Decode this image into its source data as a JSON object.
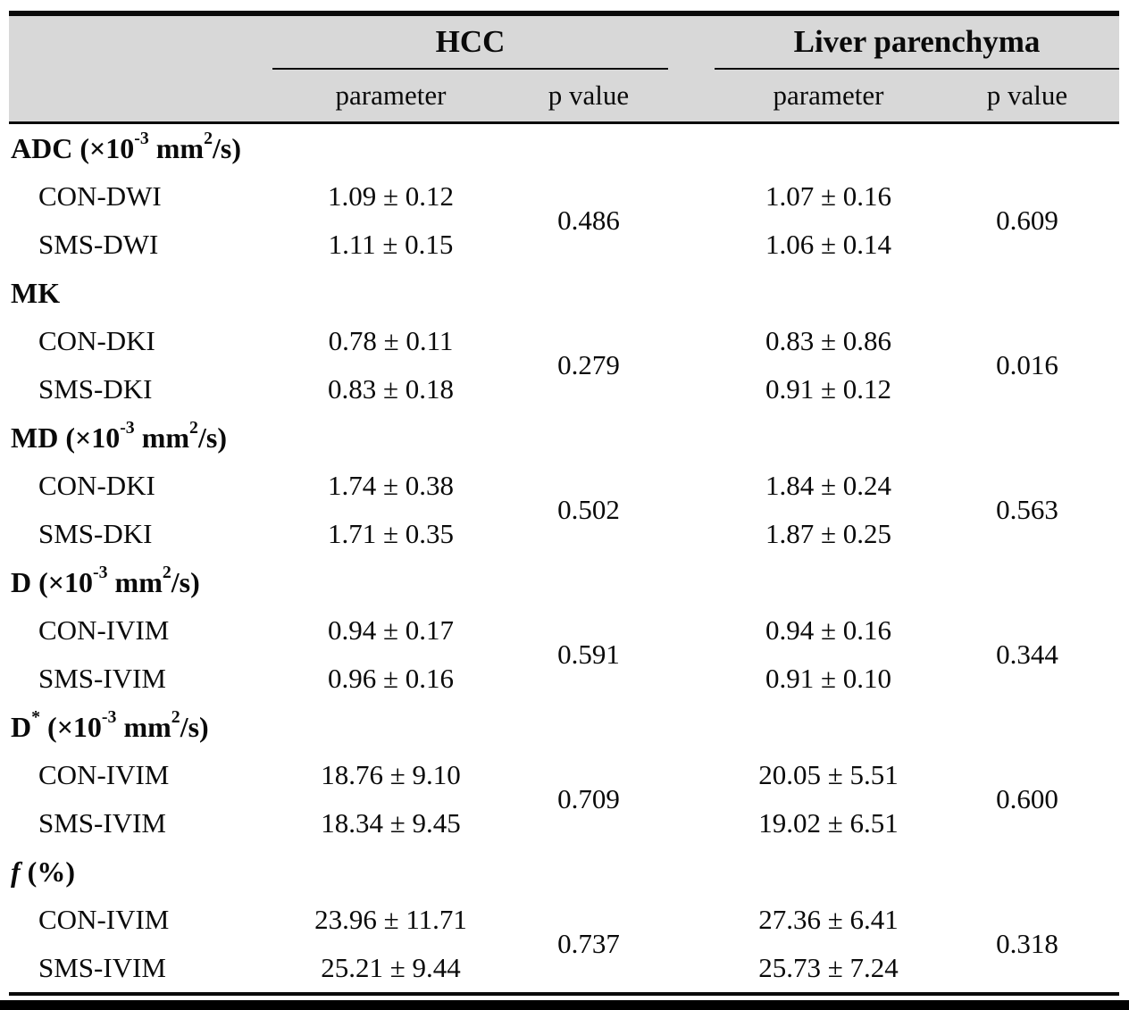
{
  "colors": {
    "header_bg": "#d8d8d8",
    "rule": "#0a0a0a",
    "text": "#0a0a0a"
  },
  "header": {
    "group1": "HCC",
    "group2": "Liver parenchyma",
    "sub_parameter": "parameter",
    "sub_pvalue": "p value"
  },
  "table": {
    "sections": [
      {
        "label_parts": [
          {
            "t": "ADC (×10"
          },
          {
            "t": "-3",
            "sup": true
          },
          {
            "t": " mm"
          },
          {
            "t": "2",
            "sup": true
          },
          {
            "t": "/s)"
          }
        ],
        "rows": [
          {
            "label": "CON-DWI",
            "hcc": "1.09 ± 0.12",
            "liver": "1.07 ± 0.16"
          },
          {
            "label": "SMS-DWI",
            "hcc": "1.11 ± 0.15",
            "liver": "1.06 ± 0.14"
          }
        ],
        "hcc_p": "0.486",
        "liver_p": "0.609"
      },
      {
        "label_parts": [
          {
            "t": "MK"
          }
        ],
        "rows": [
          {
            "label": "CON-DKI",
            "hcc": "0.78 ± 0.11",
            "liver": "0.83 ± 0.86"
          },
          {
            "label": "SMS-DKI",
            "hcc": "0.83 ± 0.18",
            "liver": "0.91 ± 0.12"
          }
        ],
        "hcc_p": "0.279",
        "liver_p": "0.016"
      },
      {
        "label_parts": [
          {
            "t": "MD (×10"
          },
          {
            "t": "-3",
            "sup": true
          },
          {
            "t": " mm"
          },
          {
            "t": "2",
            "sup": true
          },
          {
            "t": "/s)"
          }
        ],
        "rows": [
          {
            "label": "CON-DKI",
            "hcc": "1.74 ± 0.38",
            "liver": "1.84 ± 0.24"
          },
          {
            "label": "SMS-DKI",
            "hcc": "1.71 ± 0.35",
            "liver": "1.87 ± 0.25"
          }
        ],
        "hcc_p": "0.502",
        "liver_p": "0.563"
      },
      {
        "label_parts": [
          {
            "t": "D (×10"
          },
          {
            "t": "-3",
            "sup": true
          },
          {
            "t": " mm"
          },
          {
            "t": "2",
            "sup": true
          },
          {
            "t": "/s)"
          }
        ],
        "rows": [
          {
            "label": "CON-IVIM",
            "hcc": "0.94 ± 0.17",
            "liver": "0.94 ± 0.16"
          },
          {
            "label": "SMS-IVIM",
            "hcc": "0.96 ± 0.16",
            "liver": "0.91 ± 0.10"
          }
        ],
        "hcc_p": "0.591",
        "liver_p": "0.344"
      },
      {
        "label_parts": [
          {
            "t": "D"
          },
          {
            "t": "*",
            "sup": true
          },
          {
            "t": " (×10"
          },
          {
            "t": "-3",
            "sup": true
          },
          {
            "t": " mm"
          },
          {
            "t": "2",
            "sup": true
          },
          {
            "t": "/s)"
          }
        ],
        "rows": [
          {
            "label": "CON-IVIM",
            "hcc": "18.76 ± 9.10",
            "liver": "20.05 ± 5.51"
          },
          {
            "label": "SMS-IVIM",
            "hcc": "18.34 ± 9.45",
            "liver": "19.02 ± 6.51"
          }
        ],
        "hcc_p": "0.709",
        "liver_p": "0.600"
      },
      {
        "label_parts": [
          {
            "t": "f",
            "i": true
          },
          {
            "t": " (%)"
          }
        ],
        "rows": [
          {
            "label": "CON-IVIM",
            "hcc": "23.96 ± 11.71",
            "liver": "27.36 ± 6.41"
          },
          {
            "label": "SMS-IVIM",
            "hcc": "25.21 ± 9.44",
            "liver": "25.73 ± 7.24"
          }
        ],
        "hcc_p": "0.737",
        "liver_p": "0.318"
      }
    ]
  }
}
